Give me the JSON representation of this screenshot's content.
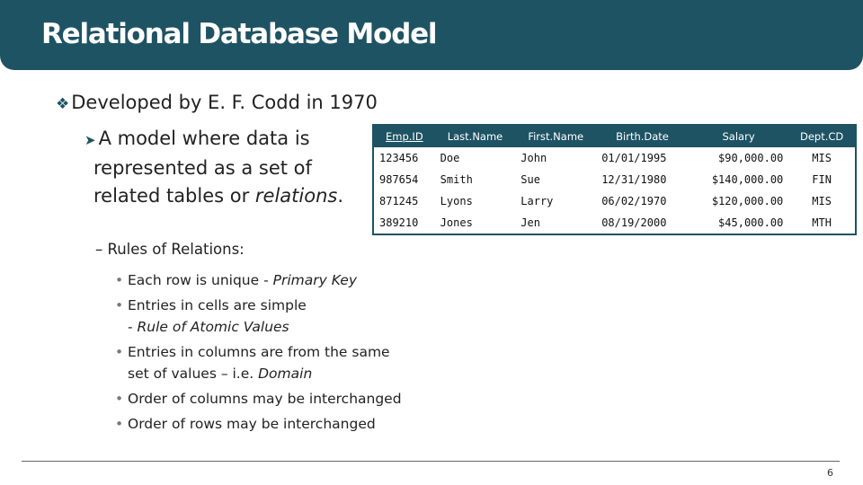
{
  "slide": {
    "title": "Relational Database Model",
    "bullet1": "Developed by E. F. Codd in 1970",
    "bullet2_first": "A model where data is",
    "bullet2_rest_prefix": "represented as a set of related tables or ",
    "bullet2_emph": "relations",
    "bullet2_end": ".",
    "bullet3": "Rules of Relations:",
    "rules": [
      {
        "text": "Each row is unique - ",
        "emph": "Primary Key"
      },
      {
        "text": "Entries in cells are simple",
        "sub_text": "- ",
        "sub_emph": "Rule of Atomic Values"
      },
      {
        "text": "Entries in columns are from the same",
        "sub_text": "set of values – i.e. ",
        "sub_emph": "Domain"
      },
      {
        "text": "Order of columns may be interchanged"
      },
      {
        "text": "Order of rows may be interchanged"
      }
    ],
    "page_number": "6"
  },
  "table": {
    "columns": [
      "Emp.ID",
      "Last.Name",
      "First.Name",
      "Birth.Date",
      "Salary",
      "Dept.CD"
    ],
    "rows": [
      [
        "123456",
        "Doe",
        "John",
        "01/01/1995",
        "$90,000.00",
        "MIS"
      ],
      [
        "987654",
        "Smith",
        "Sue",
        "12/31/1980",
        "$140,000.00",
        "FIN"
      ],
      [
        "871245",
        "Lyons",
        "Larry",
        "06/02/1970",
        "$120,000.00",
        "MIS"
      ],
      [
        "389210",
        "Jones",
        "Jen",
        "08/19/2000",
        "$45,000.00",
        "MTH"
      ]
    ]
  },
  "colors": {
    "accent": "#1e5364"
  },
  "icons": {
    "level1_bullet": "diamond-bullet-icon",
    "level2_bullet": "arrow-bullet-icon"
  }
}
